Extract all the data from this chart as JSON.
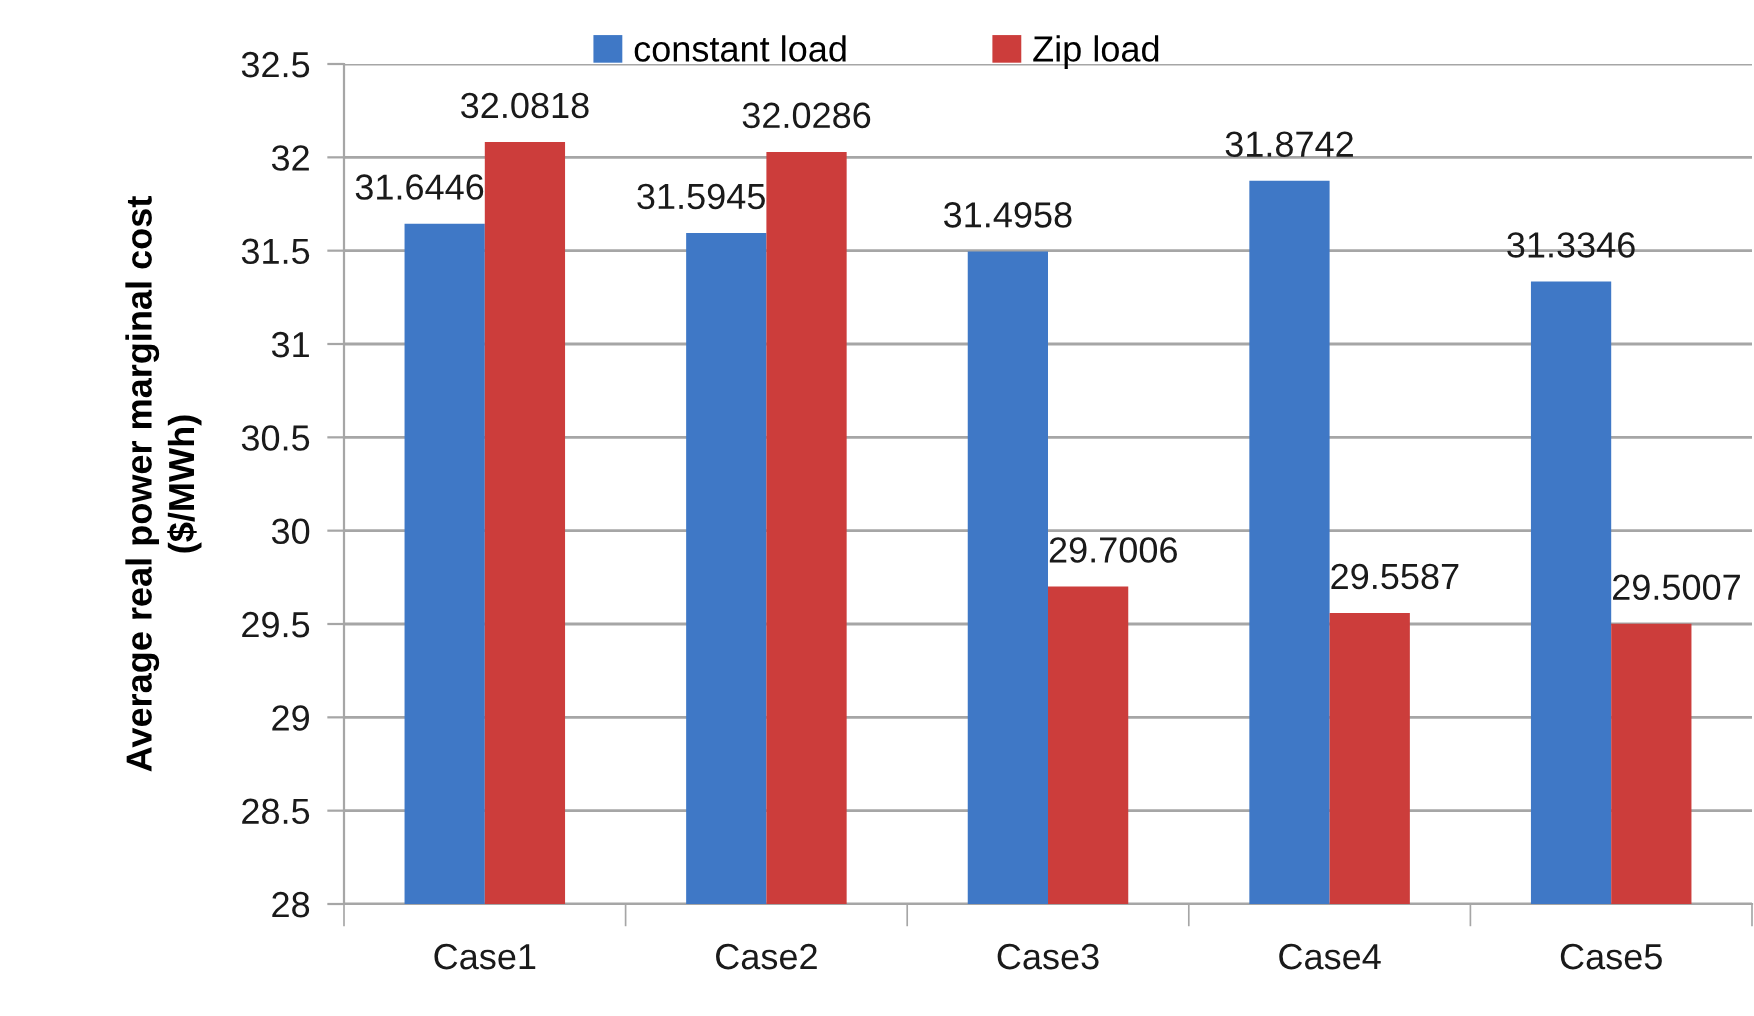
{
  "chart_data": {
    "type": "bar",
    "ylabel": "Average real power marginal cost\n($/MWh)",
    "categories": [
      "Case1",
      "Case2",
      "Case3",
      "Case4",
      "Case5"
    ],
    "series": [
      {
        "name": "constant load",
        "color": "#3f78c6",
        "values": [
          31.6446,
          31.5945,
          31.4958,
          31.8742,
          31.3346
        ]
      },
      {
        "name": "Zip load",
        "color": "#cc3d3b",
        "values": [
          32.0818,
          32.0286,
          29.7006,
          29.5587,
          29.5007
        ]
      }
    ],
    "ylim": [
      28,
      32.5
    ],
    "yticks": [
      28,
      28.5,
      29,
      29.5,
      30,
      30.5,
      31,
      31.5,
      32,
      32.5
    ],
    "grid": "y",
    "legend": "top",
    "data_labels": true
  }
}
